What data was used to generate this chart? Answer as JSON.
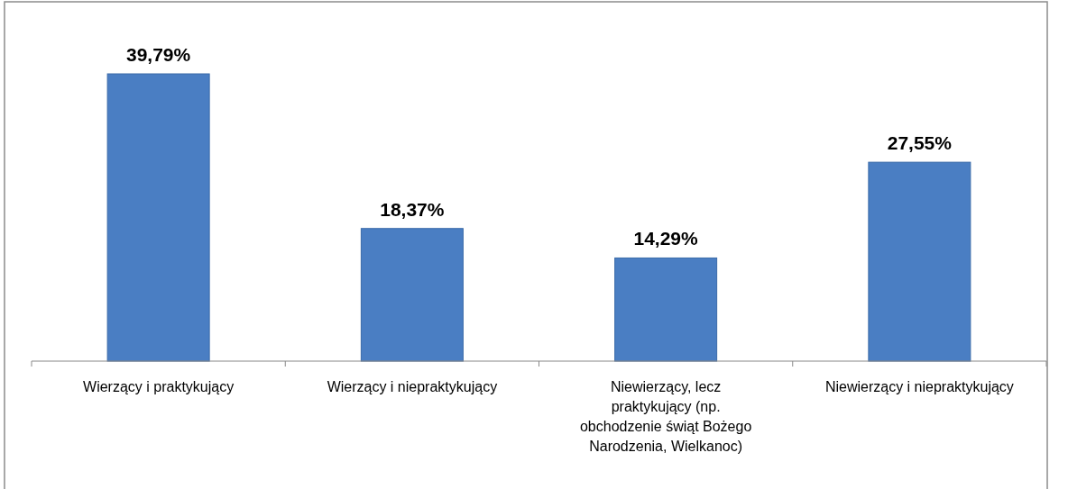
{
  "chart_data": {
    "type": "bar",
    "categories": [
      "Wierzący i praktykujący",
      "Wierzący i niepraktykujący",
      "Niewierzący, lecz praktykujący (np. obchodzenie świąt Bożego Narodzenia, Wielkanoc)",
      "Niewierzący i niepraktykujący"
    ],
    "values": [
      39.79,
      18.37,
      14.29,
      27.55
    ],
    "value_labels": [
      "39,79%",
      "18,37%",
      "14,29%",
      "27,55%"
    ],
    "color": "#4a7ec3",
    "grid": false
  }
}
